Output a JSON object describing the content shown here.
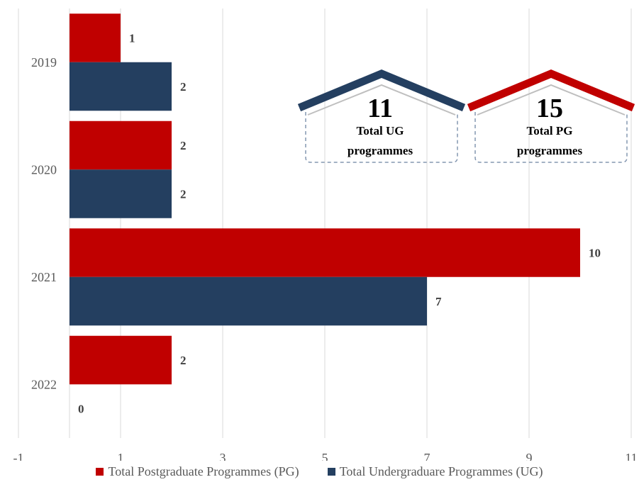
{
  "chart_data": {
    "type": "bar",
    "orientation": "horizontal",
    "categories": [
      "2019",
      "2020",
      "2021",
      "2022"
    ],
    "series": [
      {
        "name": "Total Postgraduate Programmes (PG)",
        "values": [
          1,
          2,
          10,
          2
        ],
        "color": "#c00000"
      },
      {
        "name": "Total Undergraduare Programmes (UG)",
        "values": [
          2,
          2,
          7,
          0
        ],
        "color": "#243f60"
      }
    ],
    "xticks": [
      "-1",
      "1",
      "3",
      "5",
      "7",
      "9",
      "11"
    ],
    "xlim": [
      -1,
      11
    ],
    "grid": true,
    "legend_position": "bottom"
  },
  "callouts": [
    {
      "number": "11",
      "line1": "Total UG",
      "line2": "programmes",
      "color": "#243f60"
    },
    {
      "number": "15",
      "line1": "Total PG",
      "line2": "programmes",
      "color": "#c00000"
    }
  ]
}
